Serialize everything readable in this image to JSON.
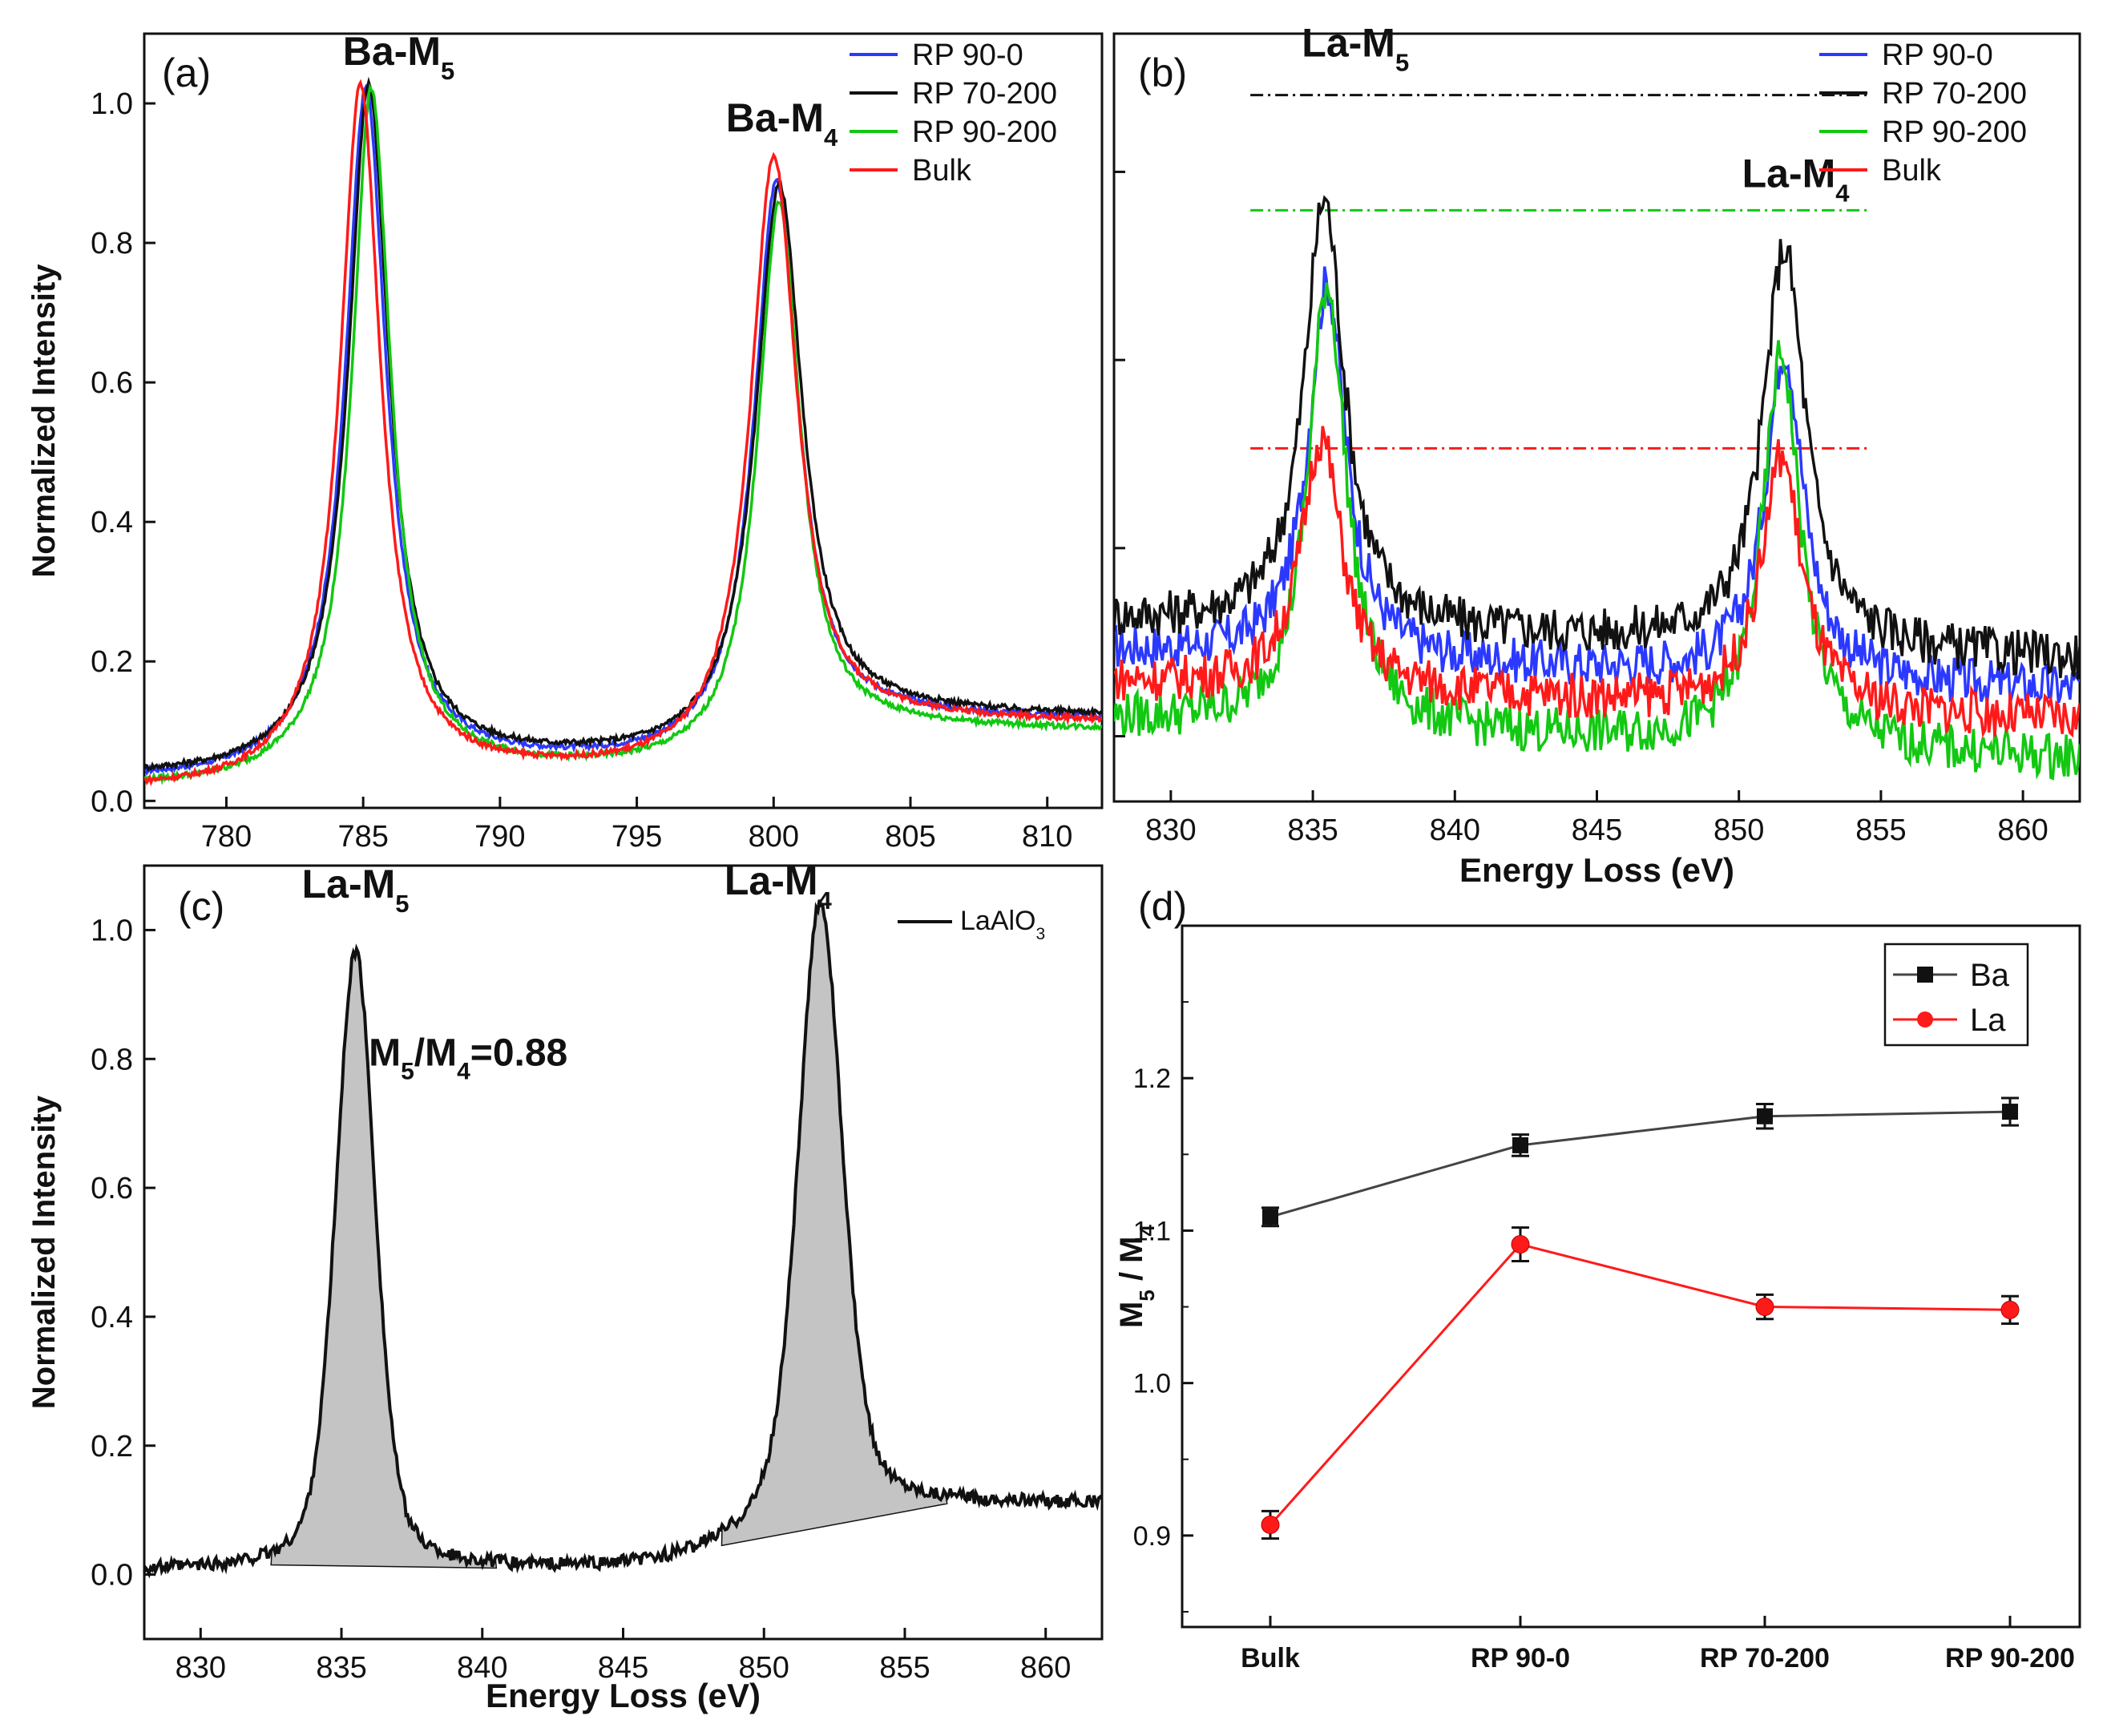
{
  "chart_data": [
    {
      "panel": "(a)",
      "type": "line",
      "title": "",
      "xlabel": "",
      "ylabel": "Normalized Intensity",
      "xlim": [
        777,
        812
      ],
      "ylim": [
        -0.01,
        1.1
      ],
      "xticks": [
        780,
        785,
        790,
        795,
        800,
        805,
        810
      ],
      "yticks": [
        0.0,
        0.2,
        0.4,
        0.6,
        0.8,
        1.0
      ],
      "legend_position": "top-right",
      "series": [
        {
          "name": "RP 90-0",
          "color": "#2b39ff",
          "base": 0.03,
          "tail": 0.095,
          "peaks": [
            {
              "center": 785.1,
              "height": 0.97,
              "width": 0.9
            },
            {
              "center": 800.1,
              "height": 0.82,
              "width": 1.0
            }
          ]
        },
        {
          "name": "RP 70-200",
          "color": "#111111",
          "base": 0.035,
          "tail": 0.1,
          "peaks": [
            {
              "center": 785.2,
              "height": 0.97,
              "width": 0.9
            },
            {
              "center": 800.2,
              "height": 0.81,
              "width": 1.05
            }
          ]
        },
        {
          "name": "RP 90-200",
          "color": "#12c812",
          "base": 0.02,
          "tail": 0.08,
          "peaks": [
            {
              "center": 785.3,
              "height": 0.98,
              "width": 0.85
            },
            {
              "center": 800.2,
              "height": 0.8,
              "width": 0.95
            }
          ]
        },
        {
          "name": "Bulk",
          "color": "#ff1a1a",
          "base": 0.015,
          "tail": 0.09,
          "peaks": [
            {
              "center": 784.9,
              "height": 0.99,
              "width": 0.9
            },
            {
              "center": 800.0,
              "height": 0.87,
              "width": 1.05
            }
          ]
        }
      ],
      "annotations": [
        {
          "text": "Ba-M",
          "sub": "5",
          "x": 786.3,
          "y": 1.055
        },
        {
          "text": "Ba-M",
          "sub": "4",
          "x": 800.3,
          "y": 0.96
        }
      ]
    },
    {
      "panel": "(b)",
      "type": "line",
      "title": "",
      "xlabel": "Energy Loss (eV)",
      "ylabel": "",
      "xlim": [
        828,
        862
      ],
      "ylim": [
        0.0,
        1.0
      ],
      "xticks": [
        830,
        835,
        840,
        845,
        850,
        855,
        860
      ],
      "yticks": [],
      "legend_position": "top-right",
      "series": [
        {
          "name": "RP 90-0",
          "color": "#2b39ff",
          "base": 0.17,
          "peaks": [
            {
              "center": 835.5,
              "height": 0.49,
              "width": 0.8
            },
            {
              "center": 851.6,
              "height": 0.43,
              "width": 0.8
            }
          ]
        },
        {
          "name": "RP 70-200",
          "color": "#111111",
          "base": 0.21,
          "peaks": [
            {
              "center": 835.4,
              "height": 0.56,
              "width": 0.85
            },
            {
              "center": 851.6,
              "height": 0.52,
              "width": 0.9
            }
          ]
        },
        {
          "name": "RP 90-200",
          "color": "#12c812",
          "base": 0.08,
          "peaks": [
            {
              "center": 835.5,
              "height": 0.58,
              "width": 0.8
            },
            {
              "center": 851.5,
              "height": 0.51,
              "width": 0.8
            }
          ]
        },
        {
          "name": "Bulk",
          "color": "#ff1a1a",
          "base": 0.13,
          "peaks": [
            {
              "center": 835.3,
              "height": 0.33,
              "width": 0.85
            },
            {
              "center": 851.5,
              "height": 0.33,
              "width": 0.85
            }
          ]
        }
      ],
      "reference_lines": [
        {
          "y": 0.92,
          "x": [
            832.8,
            854.6
          ],
          "color": "#111111"
        },
        {
          "y": 0.77,
          "x": [
            832.8,
            854.6
          ],
          "color": "#12c812"
        },
        {
          "y": 0.46,
          "x": [
            832.8,
            854.6
          ],
          "color": "#ff1a1a"
        }
      ],
      "annotations": [
        {
          "text": "La-M",
          "sub": "5",
          "x": 836.5,
          "y": 0.97
        },
        {
          "text": "La-M",
          "sub": "4",
          "x": 852.0,
          "y": 0.8
        }
      ]
    },
    {
      "panel": "(c)",
      "type": "area",
      "title": "",
      "xlabel": "Energy Loss (eV)",
      "ylabel": "Normalized Intensity",
      "xlim": [
        828,
        862
      ],
      "ylim": [
        -0.1,
        1.1
      ],
      "xticks": [
        830,
        835,
        840,
        845,
        850,
        855,
        860
      ],
      "yticks": [
        0.0,
        0.2,
        0.4,
        0.6,
        0.8,
        1.0
      ],
      "legend_position": "top-right",
      "series": [
        {
          "name": "LaAlO3",
          "label": "LaAlO",
          "label_sub": "3",
          "color": "#111111",
          "peaks": [
            {
              "center": 835.5,
              "height": 0.96,
              "width": 0.95
            },
            {
              "center": 852.0,
              "height": 0.95,
              "width": 1.05
            }
          ]
        }
      ],
      "shaded_regions": [
        {
          "x": [
            832.5,
            840.5
          ],
          "baseline": [
            0.015,
            0.01
          ]
        },
        {
          "x": [
            848.5,
            856.5
          ],
          "baseline": [
            0.045,
            0.11
          ]
        }
      ],
      "annotations": [
        {
          "text": "La-M",
          "sub": "5",
          "x": 835.5,
          "y": 1.05
        },
        {
          "text": "La-M",
          "sub": "4",
          "x": 850.5,
          "y": 1.055
        },
        {
          "text": "M5/M4=0.88",
          "x": 839.5,
          "y": 0.79
        }
      ]
    },
    {
      "panel": "(d)",
      "type": "line",
      "title": "",
      "xlabel": "",
      "ylabel": "M5 / M4",
      "categories": [
        "Bulk",
        "RP 90-0",
        "RP 70-200",
        "RP 90-200"
      ],
      "ylim": [
        0.84,
        1.3
      ],
      "yticks": [
        0.9,
        1.0,
        1.1,
        1.2
      ],
      "legend_position": "top-right",
      "series": [
        {
          "name": "Ba",
          "color": "#111111",
          "marker": "square",
          "values": [
            1.109,
            1.156,
            1.175,
            1.178
          ],
          "errors": [
            0.006,
            0.007,
            0.008,
            0.009
          ]
        },
        {
          "name": "La",
          "color": "#ff1a1a",
          "marker": "circle",
          "values": [
            0.907,
            1.091,
            1.05,
            1.048
          ],
          "errors": [
            0.009,
            0.011,
            0.008,
            0.009
          ]
        }
      ]
    }
  ]
}
